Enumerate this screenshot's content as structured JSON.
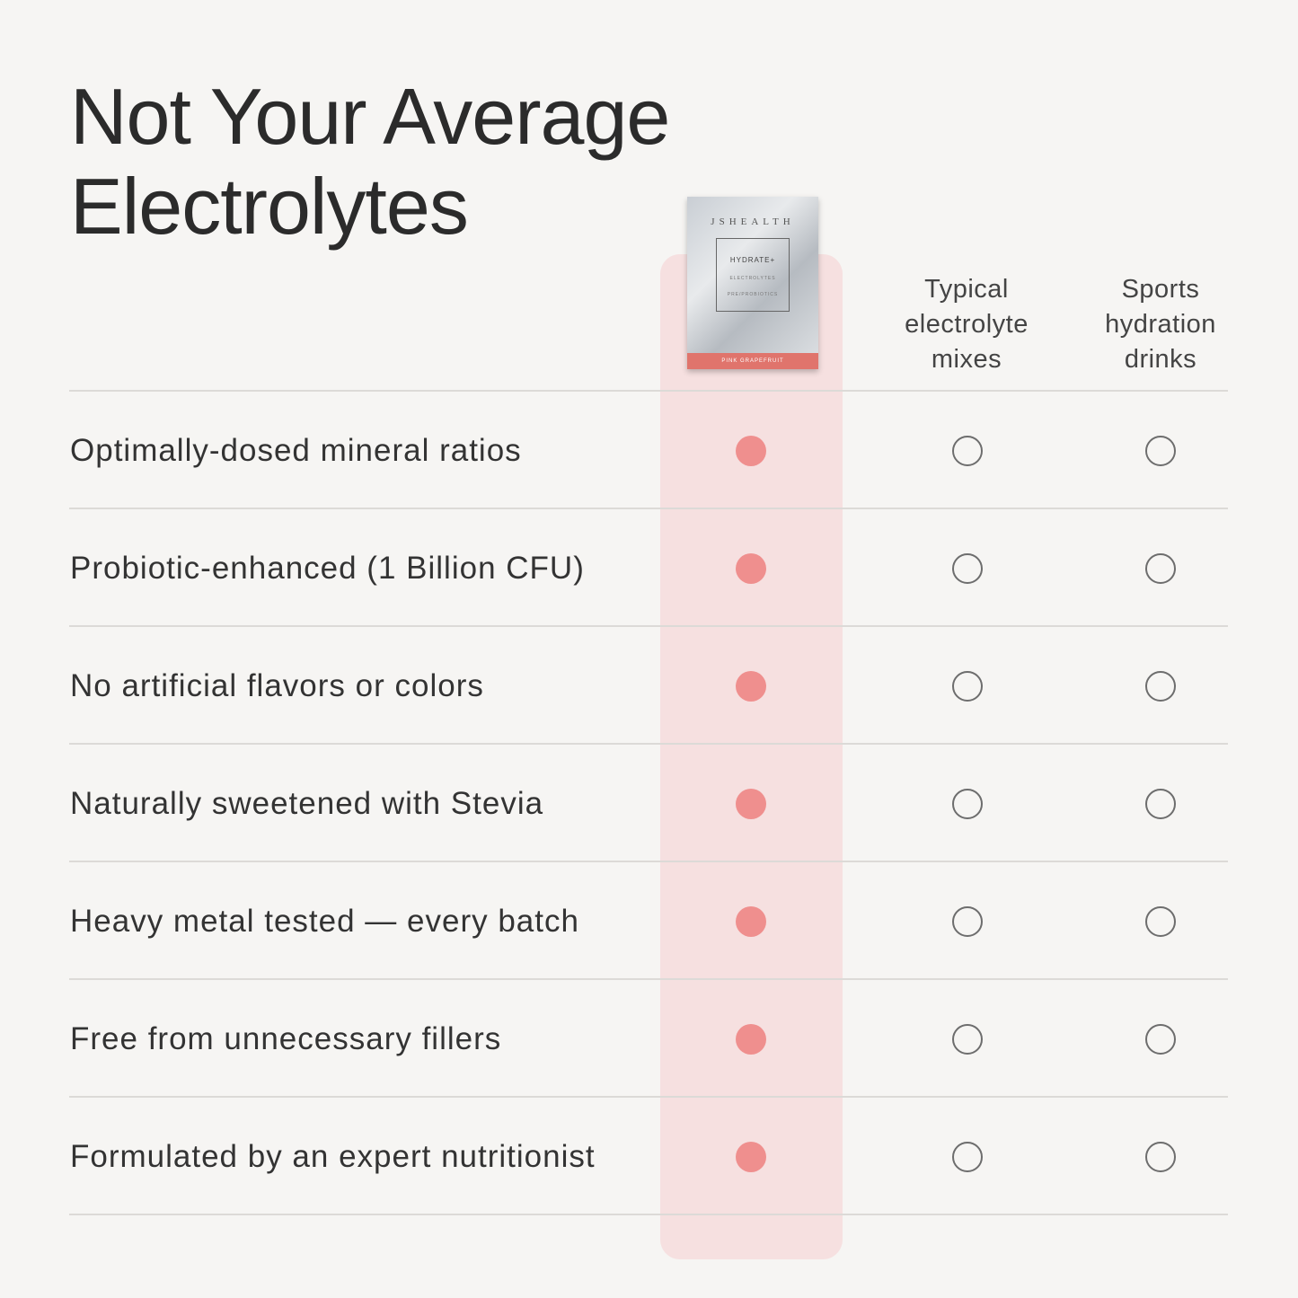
{
  "title": {
    "line1": "Not Your Average",
    "line2": "Electrolytes"
  },
  "product": {
    "brand": "JSHEALTH",
    "name": "HYDRATE+",
    "sub1": "ELECTROLYTES",
    "sub2": "PRE/PROBIOTICS",
    "flavor": "PINK GRAPEFRUIT"
  },
  "columns": [
    {
      "line1": "Typical",
      "line2": "electrolyte",
      "line3": "mixes"
    },
    {
      "line1": "Sports",
      "line2": "hydration",
      "line3": "drinks"
    }
  ],
  "rows": [
    {
      "label": "Optimally-dosed mineral ratios",
      "product": true,
      "typical": false,
      "sports": false
    },
    {
      "label": "Probiotic-enhanced (1 Billion CFU)",
      "product": true,
      "typical": false,
      "sports": false
    },
    {
      "label": "No artificial flavors or colors",
      "product": true,
      "typical": false,
      "sports": false
    },
    {
      "label": "Naturally sweetened with Stevia",
      "product": true,
      "typical": false,
      "sports": false
    },
    {
      "label": "Heavy metal tested — every batch",
      "product": true,
      "typical": false,
      "sports": false
    },
    {
      "label": "Free from unnecessary fillers",
      "product": true,
      "typical": false,
      "sports": false
    },
    {
      "label": "Formulated by an expert nutritionist",
      "product": true,
      "typical": false,
      "sports": false
    }
  ],
  "colors": {
    "background": "#f6f5f3",
    "highlight": "#f6e0e0",
    "filled_dot": "#ef8f8e",
    "empty_dot_stroke": "#6d6d6d"
  }
}
